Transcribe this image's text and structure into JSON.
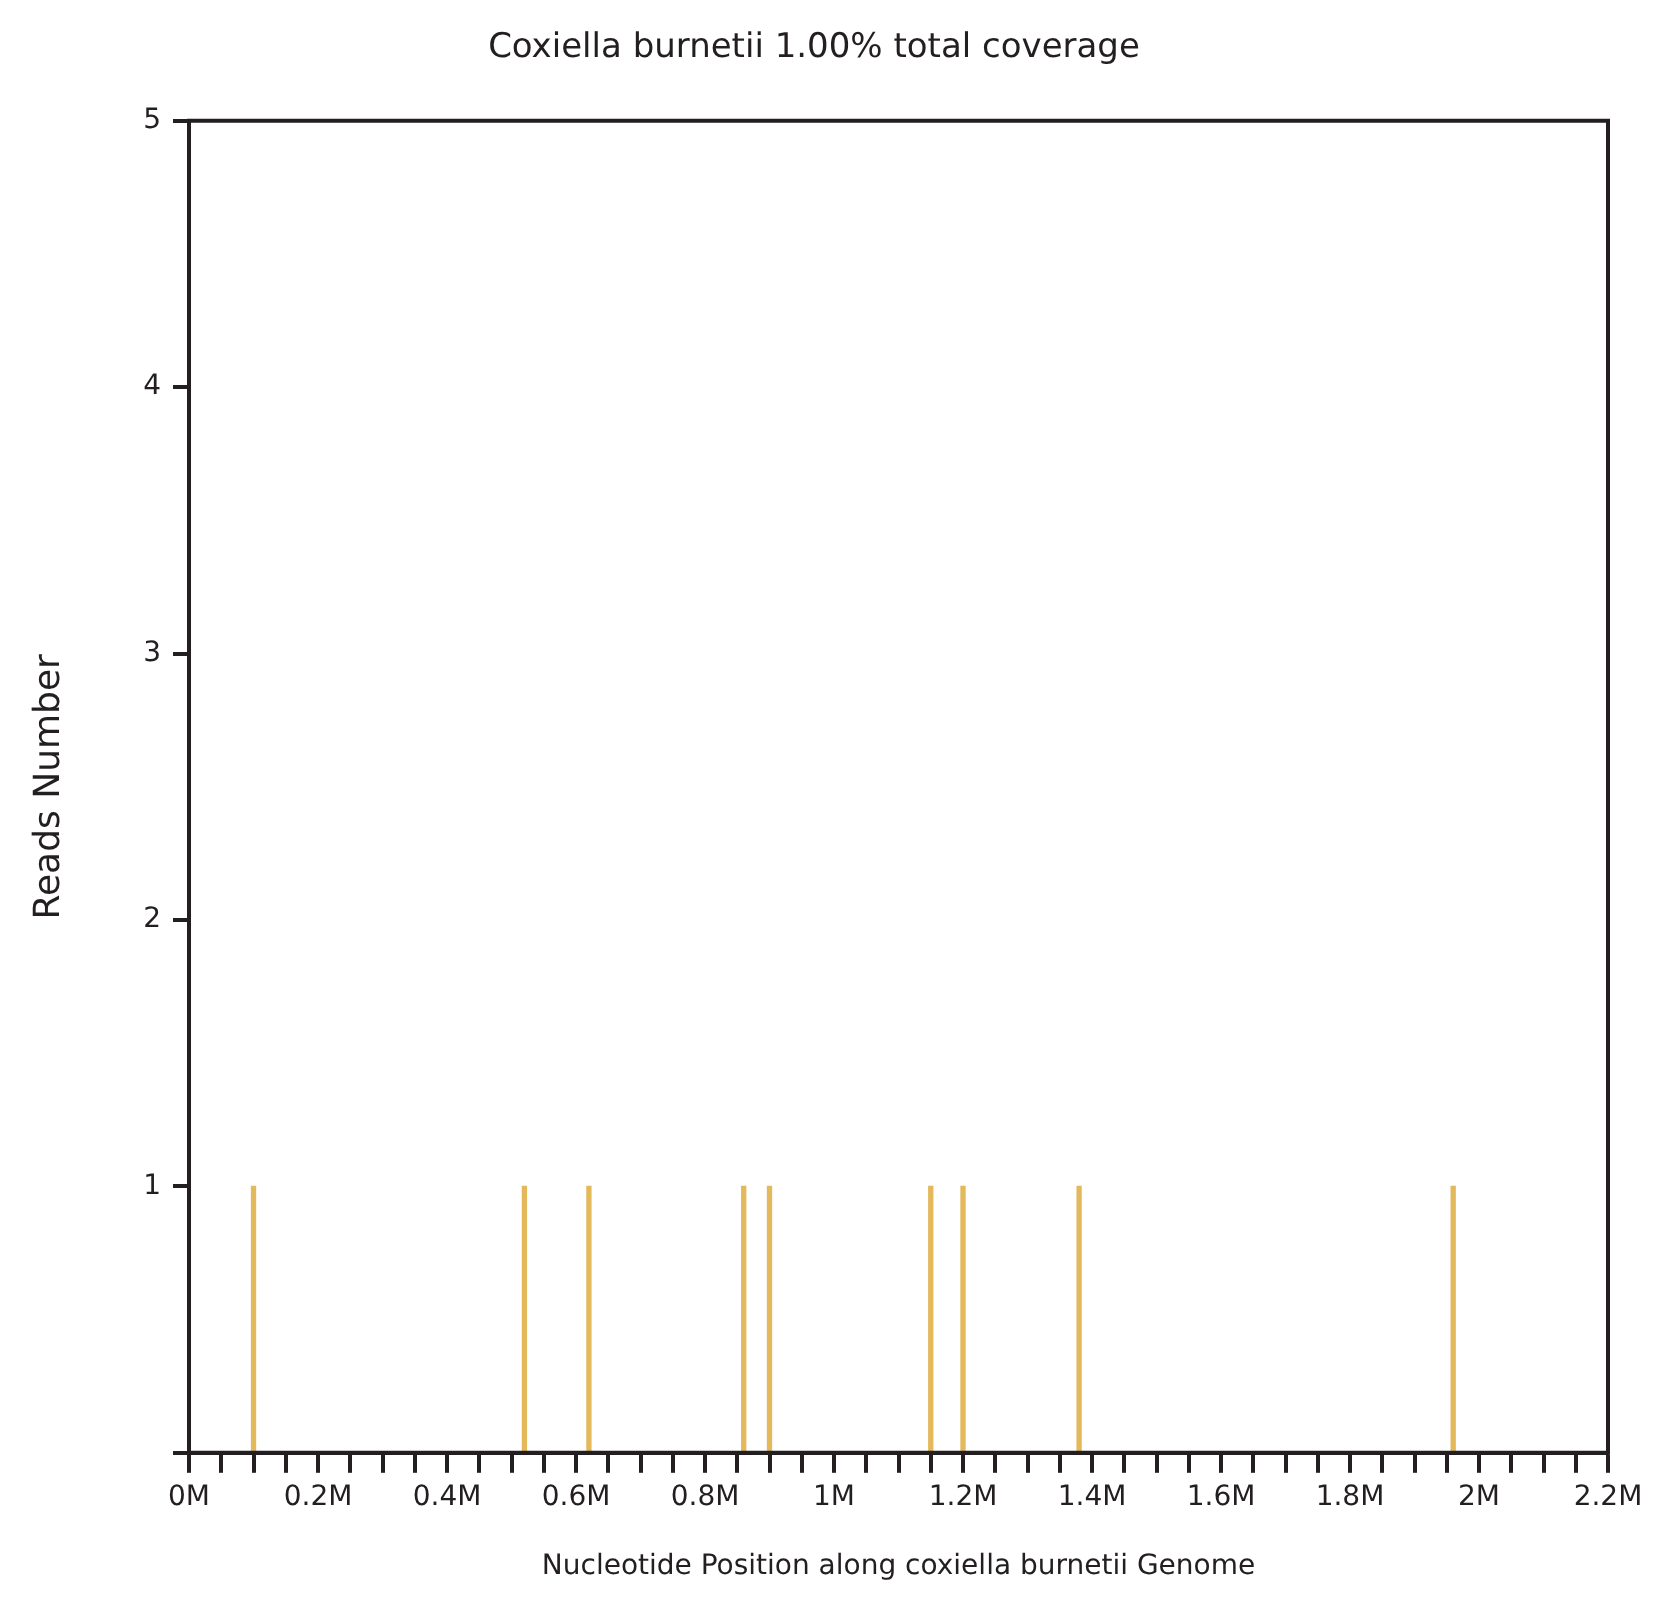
{
  "chart_data": {
    "type": "bar",
    "title": "Coxiella burnetii 1.00% total coverage",
    "xlabel": "Nucleotide Position along coxiella burnetii Genome",
    "ylabel": "Reads Number",
    "x": [
      0.1,
      0.52,
      0.62,
      0.86,
      0.9,
      1.15,
      1.2,
      1.38,
      1.96
    ],
    "values": [
      1,
      1,
      1,
      1,
      1,
      1,
      1,
      1,
      1
    ],
    "color": "#e3b95c",
    "xlim": [
      0,
      2.2
    ],
    "xticks": [
      {
        "value": 0,
        "label": "0M"
      },
      {
        "value": 0.05,
        "label": null
      },
      {
        "value": 0.1,
        "label": null
      },
      {
        "value": 0.15,
        "label": null
      },
      {
        "value": 0.2,
        "label": "0.2M"
      },
      {
        "value": 0.25,
        "label": null
      },
      {
        "value": 0.3,
        "label": null
      },
      {
        "value": 0.35,
        "label": null
      },
      {
        "value": 0.4,
        "label": "0.4M"
      },
      {
        "value": 0.45,
        "label": null
      },
      {
        "value": 0.5,
        "label": null
      },
      {
        "value": 0.55,
        "label": null
      },
      {
        "value": 0.6,
        "label": "0.6M"
      },
      {
        "value": 0.65,
        "label": null
      },
      {
        "value": 0.7,
        "label": null
      },
      {
        "value": 0.75,
        "label": null
      },
      {
        "value": 0.8,
        "label": "0.8M"
      },
      {
        "value": 0.85,
        "label": null
      },
      {
        "value": 0.9,
        "label": null
      },
      {
        "value": 0.95,
        "label": null
      },
      {
        "value": 1,
        "label": "1M"
      },
      {
        "value": 1.05,
        "label": null
      },
      {
        "value": 1.1,
        "label": null
      },
      {
        "value": 1.15,
        "label": null
      },
      {
        "value": 1.2,
        "label": "1.2M"
      },
      {
        "value": 1.25,
        "label": null
      },
      {
        "value": 1.3,
        "label": null
      },
      {
        "value": 1.35,
        "label": null
      },
      {
        "value": 1.4,
        "label": "1.4M"
      },
      {
        "value": 1.45,
        "label": null
      },
      {
        "value": 1.5,
        "label": null
      },
      {
        "value": 1.55,
        "label": null
      },
      {
        "value": 1.6,
        "label": "1.6M"
      },
      {
        "value": 1.65,
        "label": null
      },
      {
        "value": 1.7,
        "label": null
      },
      {
        "value": 1.75,
        "label": null
      },
      {
        "value": 1.8,
        "label": "1.8M"
      },
      {
        "value": 1.85,
        "label": null
      },
      {
        "value": 1.9,
        "label": null
      },
      {
        "value": 1.95,
        "label": null
      },
      {
        "value": 2,
        "label": "2M"
      },
      {
        "value": 2.05,
        "label": null
      },
      {
        "value": 2.1,
        "label": null
      },
      {
        "value": 2.15,
        "label": null
      },
      {
        "value": 2.2,
        "label": "2.2M"
      }
    ],
    "ylim": [
      0,
      5
    ],
    "yticks": [
      {
        "value": 0,
        "label": null
      },
      1,
      2,
      3,
      4,
      5
    ],
    "grid": false,
    "legend": false
  }
}
